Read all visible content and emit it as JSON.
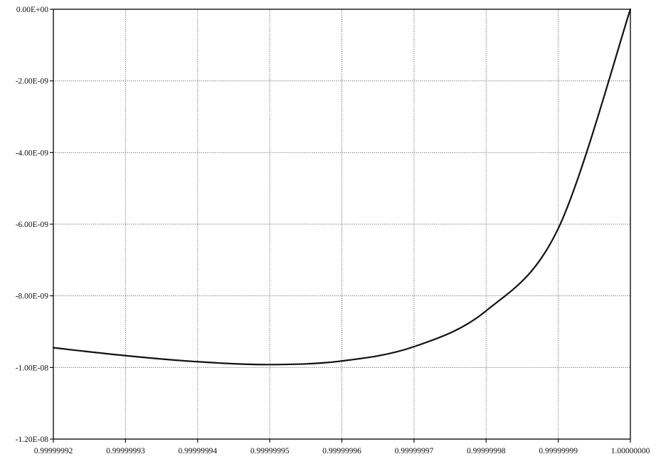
{
  "chart_data": {
    "type": "line",
    "title": "",
    "xlabel": "",
    "ylabel": "",
    "xlim": [
      0.99999992,
      1.0
    ],
    "ylim": [
      -1.2e-08,
      0
    ],
    "x_ticks": [
      0.99999992,
      0.99999993,
      0.99999994,
      0.99999995,
      0.99999996,
      0.99999997,
      0.99999998,
      0.99999999,
      1.0
    ],
    "x_tick_labels": [
      "0.99999992",
      "0.99999993",
      "0.99999994",
      "0.99999995",
      "0.99999996",
      "0.99999997",
      "0.99999998",
      "0.99999999",
      "1.00000000"
    ],
    "y_ticks": [
      0,
      -2e-09,
      -4e-09,
      -6e-09,
      -8e-09,
      -1e-08,
      -1.2e-08
    ],
    "y_tick_labels": [
      "0.00E+00",
      "-2.00E-09",
      "-4.00E-09",
      "-6.00E-09",
      "-8.00E-09",
      "-1.00E-08",
      "-1.20E-08"
    ],
    "grid": true,
    "legend": "none",
    "line_color": "#111111",
    "series": [
      {
        "x": [
          0.99999992,
          0.99999993,
          0.99999994,
          0.99999995,
          0.99999996,
          0.99999997,
          0.99999998,
          0.99999999,
          1.0
        ],
        "values": [
          -9.45e-09,
          -9.67e-09,
          -9.84e-09,
          -9.92e-09,
          -9.82e-09,
          -9.42e-09,
          -8.42e-09,
          -6.12e-09,
          0
        ]
      }
    ]
  }
}
